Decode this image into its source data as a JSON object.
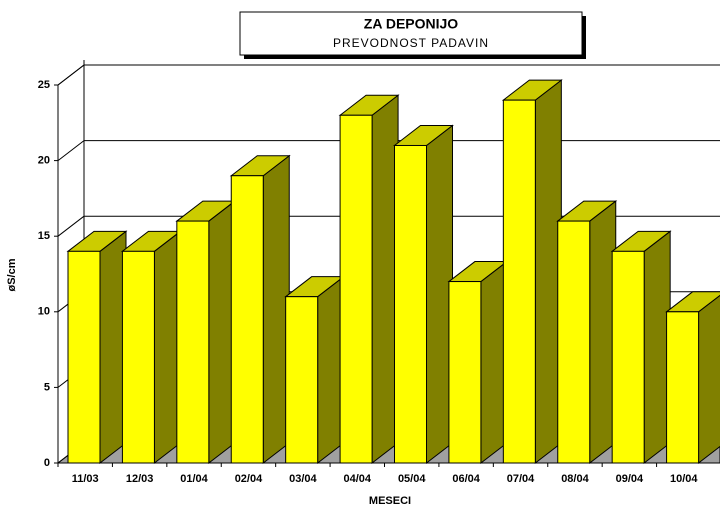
{
  "chart_data": {
    "type": "bar3d",
    "title": "ZA DEPONIJO",
    "subtitle": "PREVODNOST PADAVIN",
    "x_label": "MESECI",
    "y_label": "øS/cm",
    "categories": [
      "11/03",
      "12/03",
      "01/04",
      "02/04",
      "03/04",
      "04/04",
      "05/04",
      "06/04",
      "07/04",
      "08/04",
      "09/04",
      "10/04"
    ],
    "values": [
      14,
      14,
      16,
      19,
      11,
      23,
      21,
      12,
      24,
      16,
      14,
      10
    ],
    "color": "#ffff00",
    "ylim": [
      0,
      25
    ],
    "yticks": [
      0,
      5,
      10,
      15,
      20,
      25
    ],
    "grid": true
  }
}
